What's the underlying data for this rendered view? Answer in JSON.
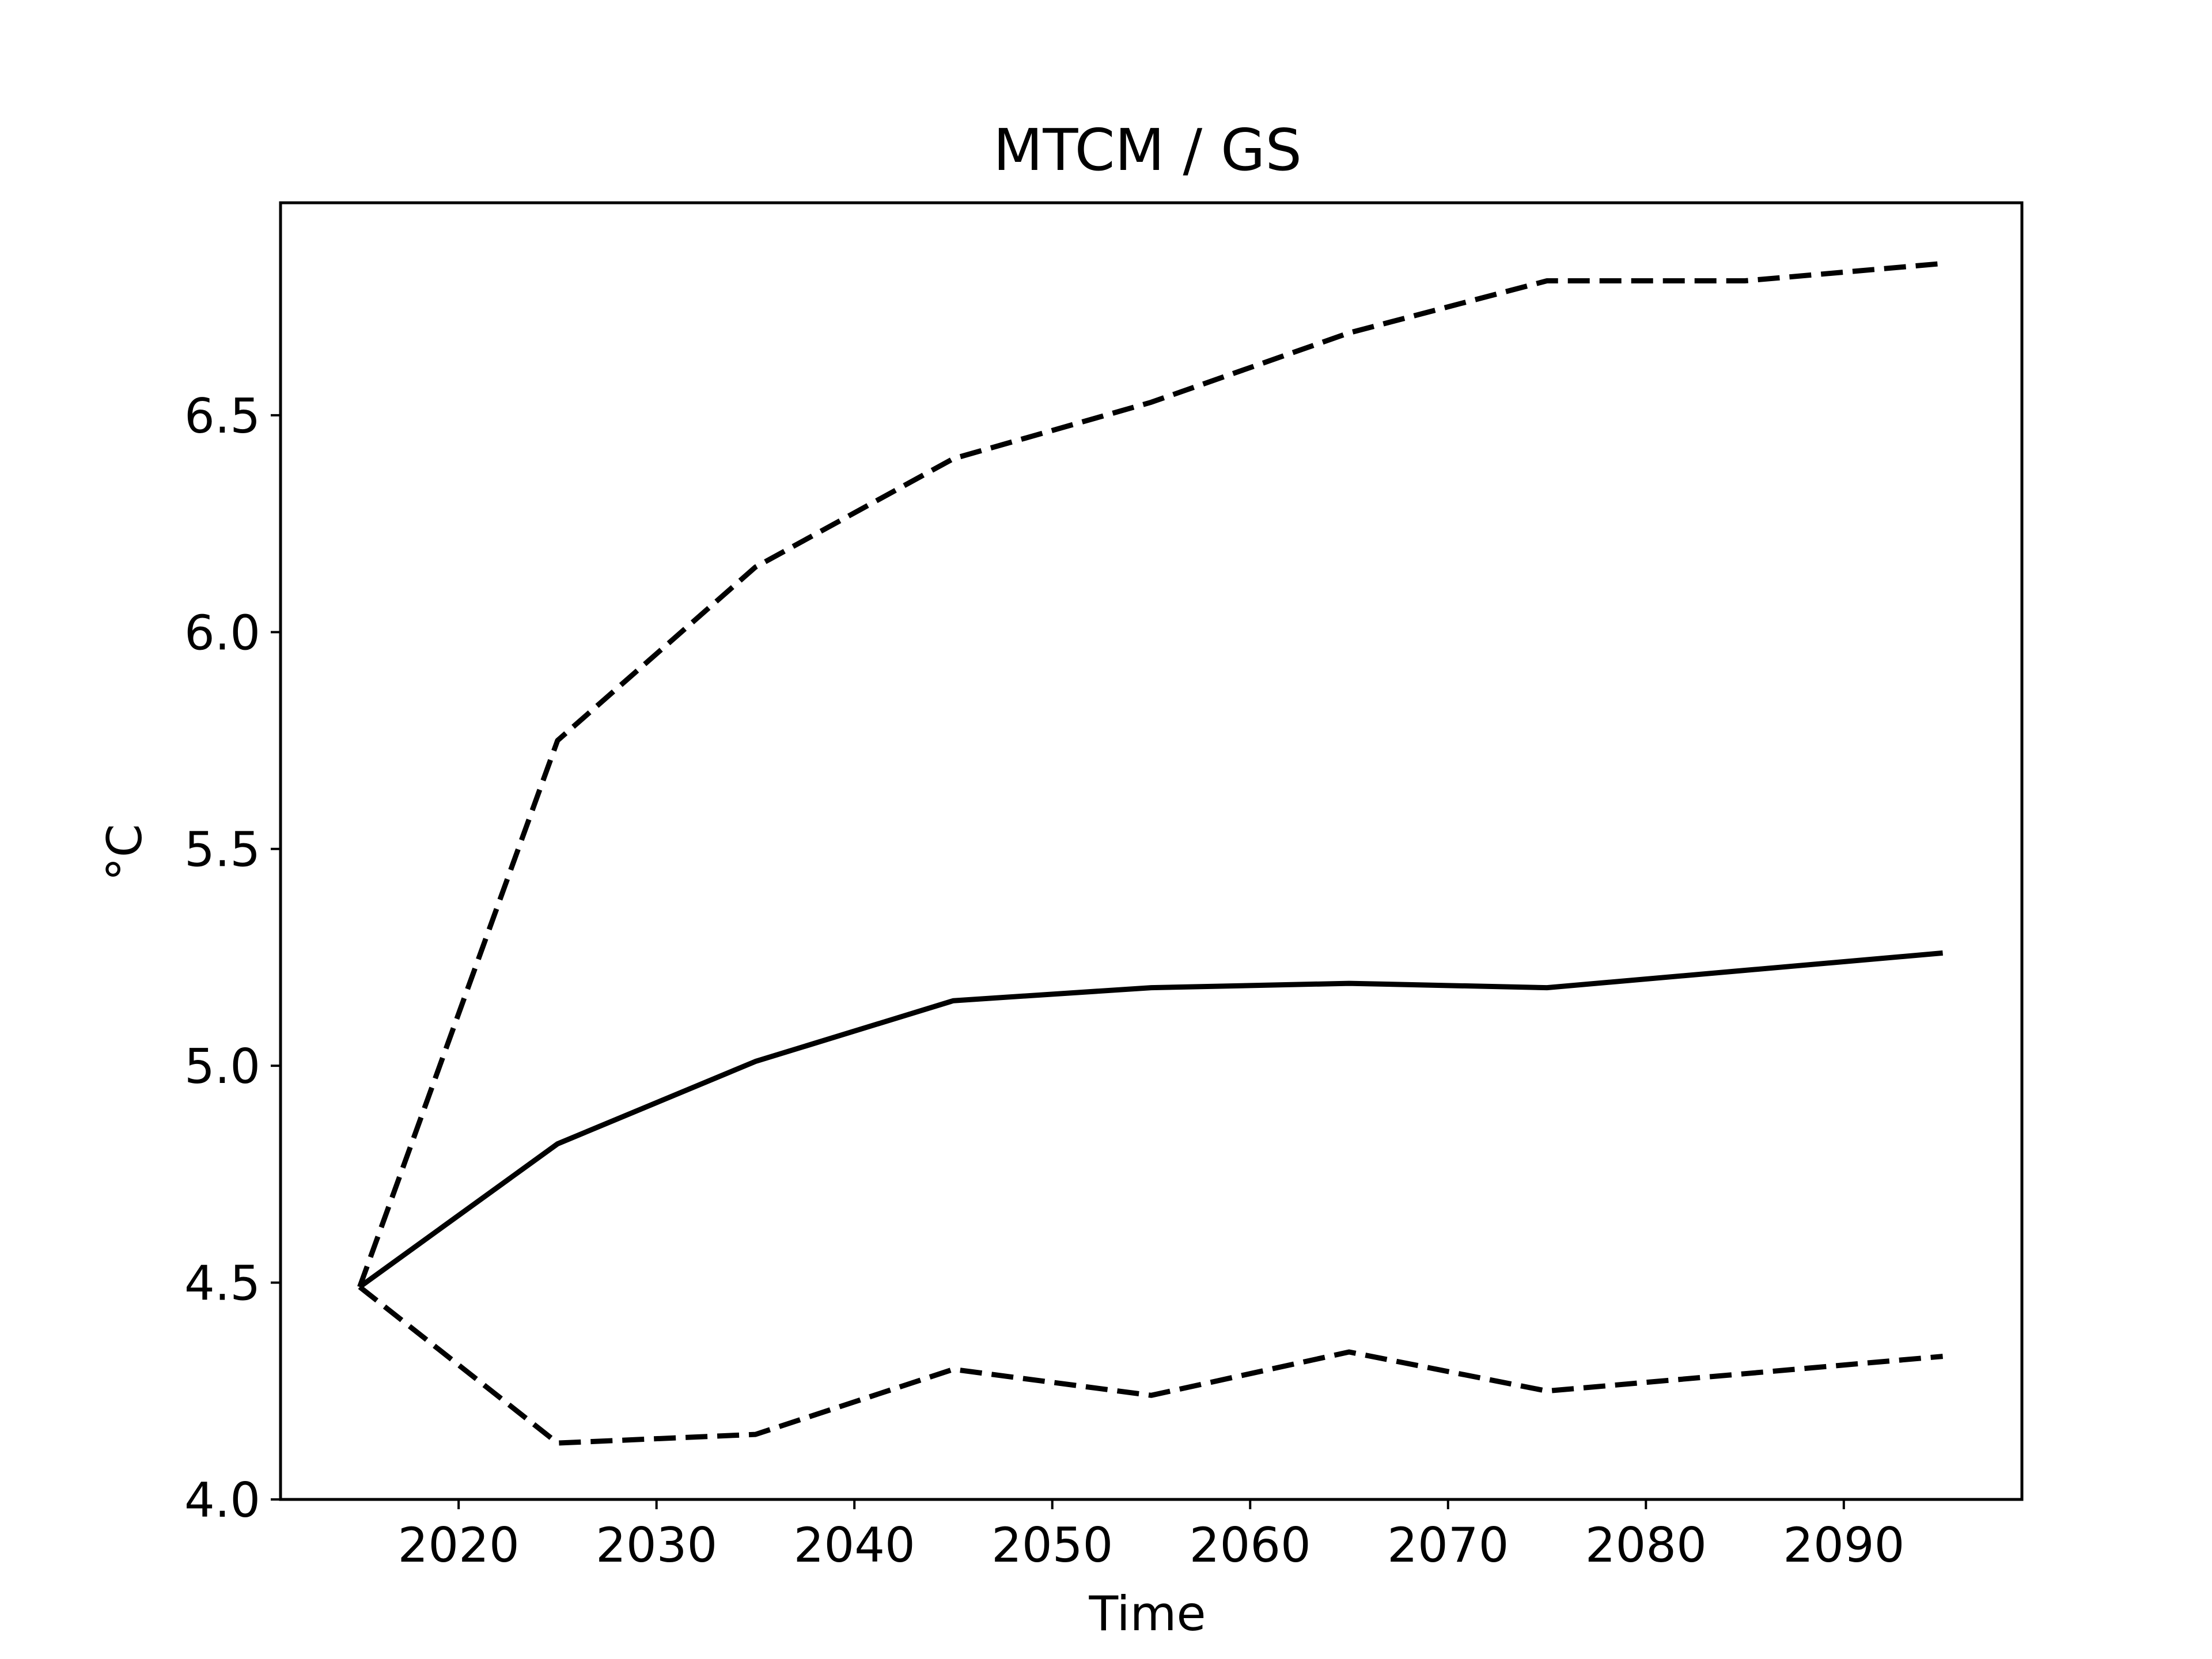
{
  "chart_data": {
    "type": "line",
    "title": "MTCM / GS",
    "xlabel": "Time",
    "ylabel": "°C",
    "x": [
      2015,
      2025,
      2035,
      2045,
      2055,
      2065,
      2075,
      2085,
      2095
    ],
    "series": [
      {
        "style": "solid",
        "color": "#000000",
        "values": [
          4.49,
          4.82,
          5.01,
          5.15,
          5.18,
          5.19,
          5.18,
          5.22,
          5.26
        ]
      },
      {
        "style": "dashed",
        "color": "#000000",
        "values": [
          4.49,
          5.75,
          6.15,
          6.4,
          6.53,
          6.69,
          6.81,
          6.81,
          6.85
        ]
      },
      {
        "style": "dashed",
        "color": "#000000",
        "values": [
          4.49,
          4.13,
          4.15,
          4.3,
          4.24,
          4.34,
          4.25,
          4.29,
          4.33
        ]
      }
    ],
    "xlim": [
      2011,
      2099
    ],
    "ylim": [
      4.0,
      6.99
    ],
    "xticks": [
      2020,
      2030,
      2040,
      2050,
      2060,
      2070,
      2080,
      2090
    ],
    "yticks": [
      4.0,
      4.5,
      5.0,
      5.5,
      6.0,
      6.5
    ],
    "xtick_labels": [
      "2020",
      "2030",
      "2040",
      "2050",
      "2060",
      "2070",
      "2080",
      "2090"
    ],
    "ytick_labels": [
      "4.0",
      "4.5",
      "5.0",
      "5.5",
      "6.0",
      "6.5"
    ],
    "grid": false,
    "legend": "none"
  }
}
